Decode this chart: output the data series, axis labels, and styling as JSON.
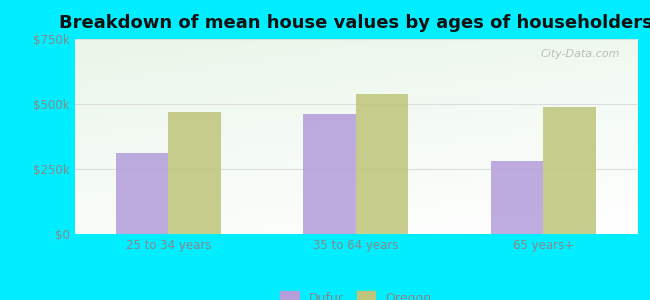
{
  "title": "Breakdown of mean house values by ages of householders",
  "categories": [
    "25 to 34 years",
    "35 to 64 years",
    "65 years+"
  ],
  "dufur_values": [
    310000,
    460000,
    280000
  ],
  "oregon_values": [
    470000,
    540000,
    490000
  ],
  "ylim": [
    0,
    750000
  ],
  "yticks": [
    0,
    250000,
    500000,
    750000
  ],
  "ytick_labels": [
    "$0",
    "$250k",
    "$500k",
    "$750k"
  ],
  "bar_width": 0.28,
  "dufur_color": "#b39ddb",
  "oregon_color": "#bec57a",
  "background_outer": "#00eeff",
  "legend_dufur": "Dufur",
  "legend_oregon": "Oregon",
  "title_fontsize": 13,
  "axis_label_color": "#888888",
  "grid_color": "#dddddd",
  "watermark": "City-Data.com",
  "bg_top_left": "#c8efc8",
  "bg_top_right": "#ddeedd",
  "bg_bottom_left": "#e8f8e8",
  "bg_bottom_right": "#f5fff5"
}
